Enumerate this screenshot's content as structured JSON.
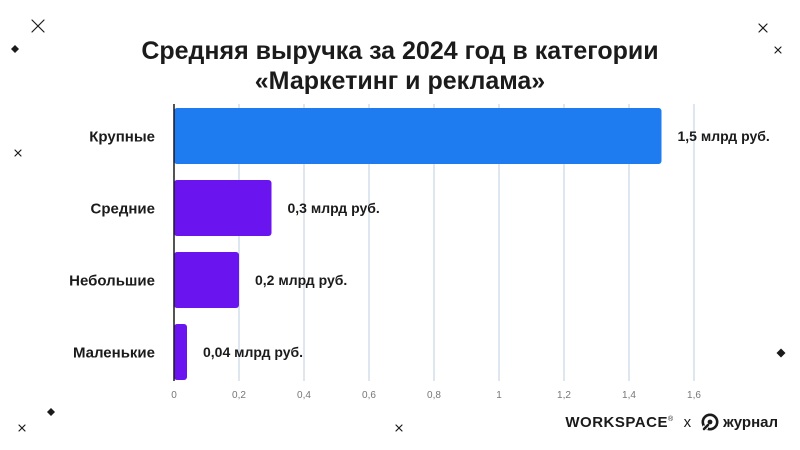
{
  "title_line1": "Средняя выручка за 2024 год в категории",
  "title_line2": "«Маркетинг и реклама»",
  "footer": {
    "brand_left": "WORKSPACE",
    "registered_mark": "®",
    "separator": "x",
    "brand_right": "журнал",
    "brand_right_icon": "journal-logo-icon"
  },
  "colors": {
    "primary_bar": "#1E7BF0",
    "secondary_bar": "#6A14F0",
    "grid": "#C9D7E6",
    "axis": "#1b1b1b",
    "text": "#1b1b1b",
    "tick_text": "#777777"
  },
  "decorations": {
    "sparkle_icon": "sparkle-icon",
    "diamond_icon": "diamond-icon"
  },
  "chart_data": {
    "type": "bar",
    "orientation": "horizontal",
    "title": "Средняя выручка за 2024 год в категории «Маркетинг и реклама»",
    "categories": [
      "Крупные",
      "Средние",
      "Небольшие",
      "Маленькие"
    ],
    "values": [
      1.5,
      0.3,
      0.2,
      0.04
    ],
    "data_labels": [
      "1,5 млрд руб.",
      "0,3 млрд руб.",
      "0,2 млрд руб.",
      "0,04 млрд руб."
    ],
    "bar_colors": [
      "#1E7BF0",
      "#6A14F0",
      "#6A14F0",
      "#6A14F0"
    ],
    "xlim": [
      0,
      1.6
    ],
    "xticks": [
      0,
      0.2,
      0.4,
      0.6,
      0.8,
      1,
      1.2,
      1.4,
      1.6
    ],
    "xtick_labels": [
      "0",
      "0,2",
      "0,4",
      "0,6",
      "0,8",
      "1",
      "1,2",
      "1,4",
      "1,6"
    ],
    "xlabel": "",
    "ylabel": "",
    "grid": true,
    "legend": "none"
  }
}
